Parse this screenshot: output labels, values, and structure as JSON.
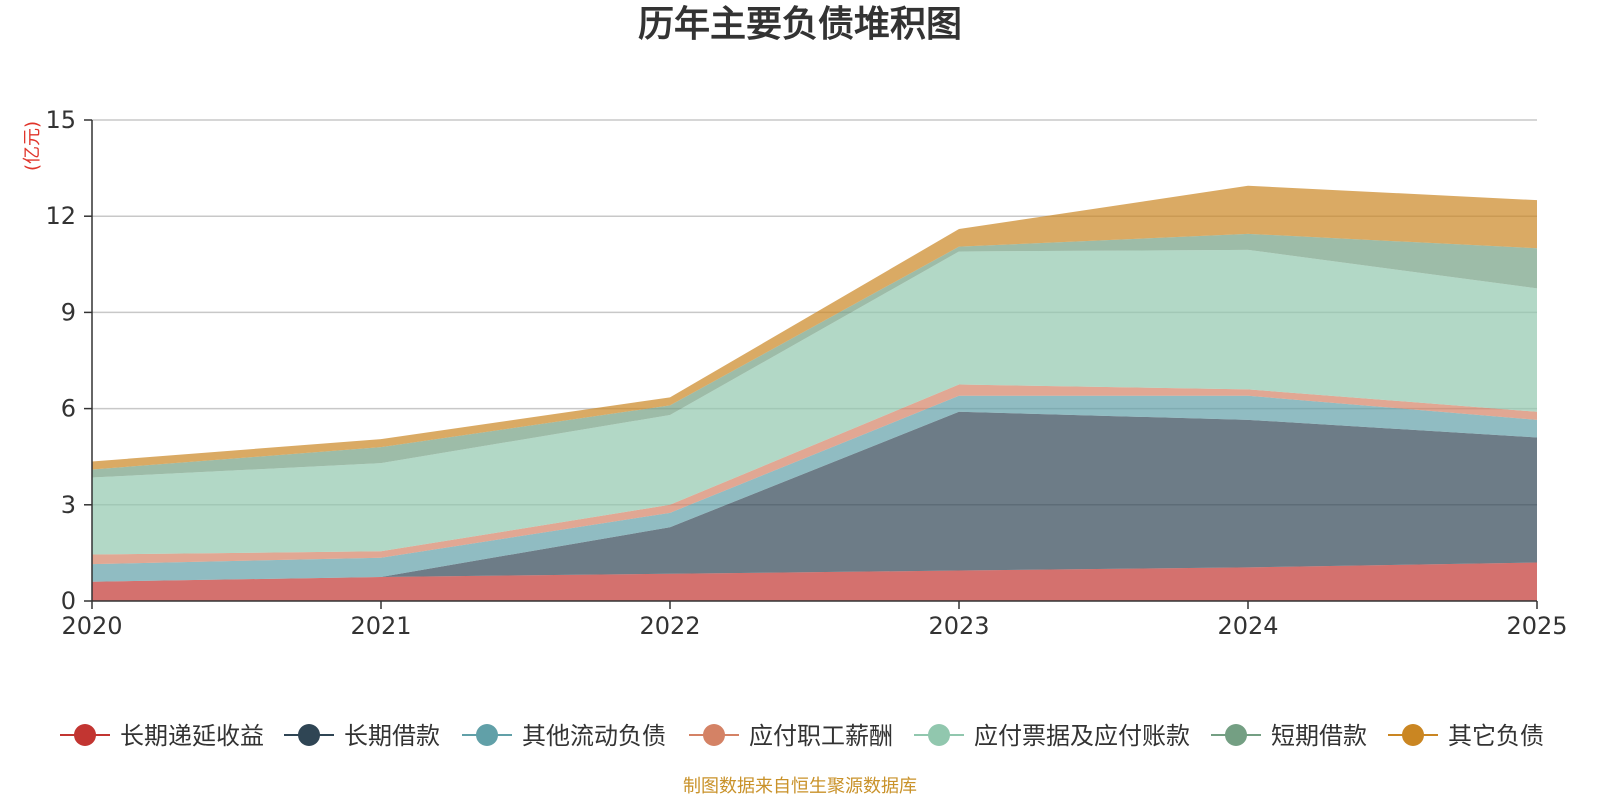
{
  "chart_data": {
    "type": "area",
    "stacked": true,
    "title": "历年主要负债堆积图",
    "unit_label": "(亿元)",
    "x": [
      "2020",
      "2021",
      "2022",
      "2023",
      "2024",
      "2025"
    ],
    "ylim": [
      0,
      15
    ],
    "yticks": [
      "0",
      "3",
      "6",
      "9",
      "12",
      "15"
    ],
    "grid": true,
    "legend_position": "bottom",
    "series": [
      {
        "name": "长期递延收益",
        "color": "#c23531",
        "values": [
          0.6,
          0.75,
          0.85,
          0.95,
          1.05,
          1.2
        ]
      },
      {
        "name": "长期借款",
        "color": "#2f4554",
        "values": [
          0.0,
          0.0,
          1.45,
          4.95,
          4.6,
          3.9
        ]
      },
      {
        "name": "其他流动负债",
        "color": "#61a0a8",
        "values": [
          0.55,
          0.6,
          0.45,
          0.5,
          0.75,
          0.55
        ]
      },
      {
        "name": "应付职工薪酬",
        "color": "#d48265",
        "values": [
          0.3,
          0.2,
          0.25,
          0.35,
          0.2,
          0.25
        ]
      },
      {
        "name": "应付票据及应付账款",
        "color": "#91c7ae",
        "values": [
          2.4,
          2.75,
          2.8,
          4.15,
          4.35,
          3.85
        ]
      },
      {
        "name": "短期借款",
        "color": "#749f83",
        "values": [
          0.25,
          0.5,
          0.3,
          0.15,
          0.5,
          1.25
        ]
      },
      {
        "name": "其它负债",
        "color": "#ca8622",
        "values": [
          0.25,
          0.25,
          0.25,
          0.55,
          1.5,
          1.5
        ]
      }
    ]
  },
  "source_text": "制图数据来自恒生聚源数据库"
}
